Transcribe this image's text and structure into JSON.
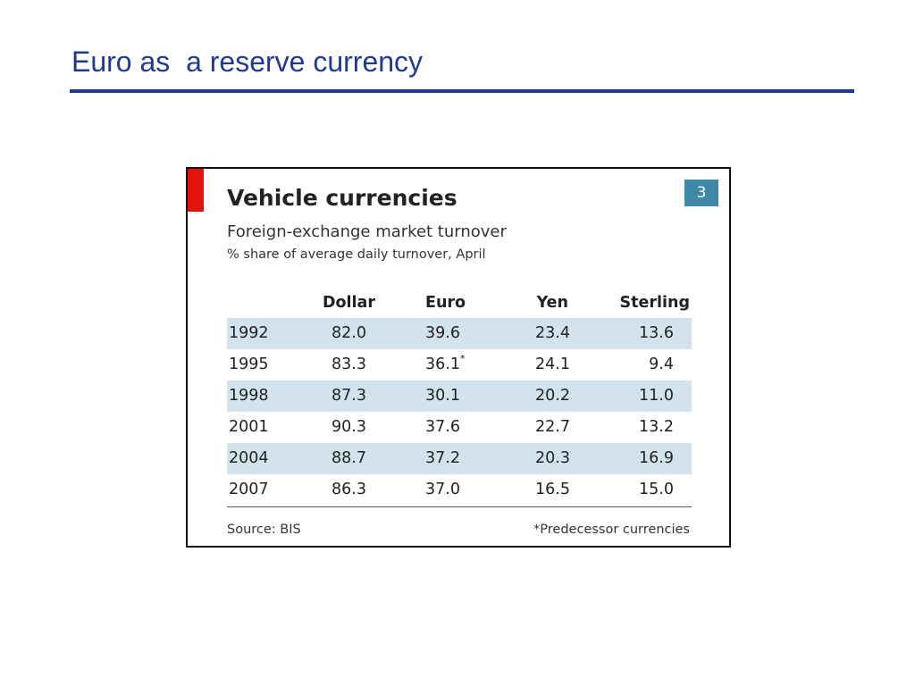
{
  "slide": {
    "title": "Euro as  a reserve currency"
  },
  "chart_data": {
    "type": "table",
    "number": "3",
    "title": "Vehicle currencies",
    "subtitle": "Foreign-exchange market turnover",
    "unit": "% share of average daily turnover, April",
    "columns": [
      "",
      "Dollar",
      "Euro",
      "Yen",
      "Sterling"
    ],
    "rows": [
      {
        "year": "1992",
        "dollar": "82.0",
        "euro": "39.6",
        "euro_note": "",
        "yen": "23.4",
        "sterling": "13.6"
      },
      {
        "year": "1995",
        "dollar": "83.3",
        "euro": "36.1",
        "euro_note": "*",
        "yen": "24.1",
        "sterling": "9.4"
      },
      {
        "year": "1998",
        "dollar": "87.3",
        "euro": "30.1",
        "euro_note": "",
        "yen": "20.2",
        "sterling": "11.0"
      },
      {
        "year": "2001",
        "dollar": "90.3",
        "euro": "37.6",
        "euro_note": "",
        "yen": "22.7",
        "sterling": "13.2"
      },
      {
        "year": "2004",
        "dollar": "88.7",
        "euro": "37.2",
        "euro_note": "",
        "yen": "20.3",
        "sterling": "16.9"
      },
      {
        "year": "2007",
        "dollar": "86.3",
        "euro": "37.0",
        "euro_note": "",
        "yen": "16.5",
        "sterling": "15.0"
      }
    ],
    "source": "Source: BIS",
    "footnote": "*Predecessor currencies"
  },
  "colors": {
    "title": "#1f3a93",
    "accent_tab": "#e3120b",
    "number_badge": "#3e88a8",
    "row_shade": "#d3e3ee"
  }
}
